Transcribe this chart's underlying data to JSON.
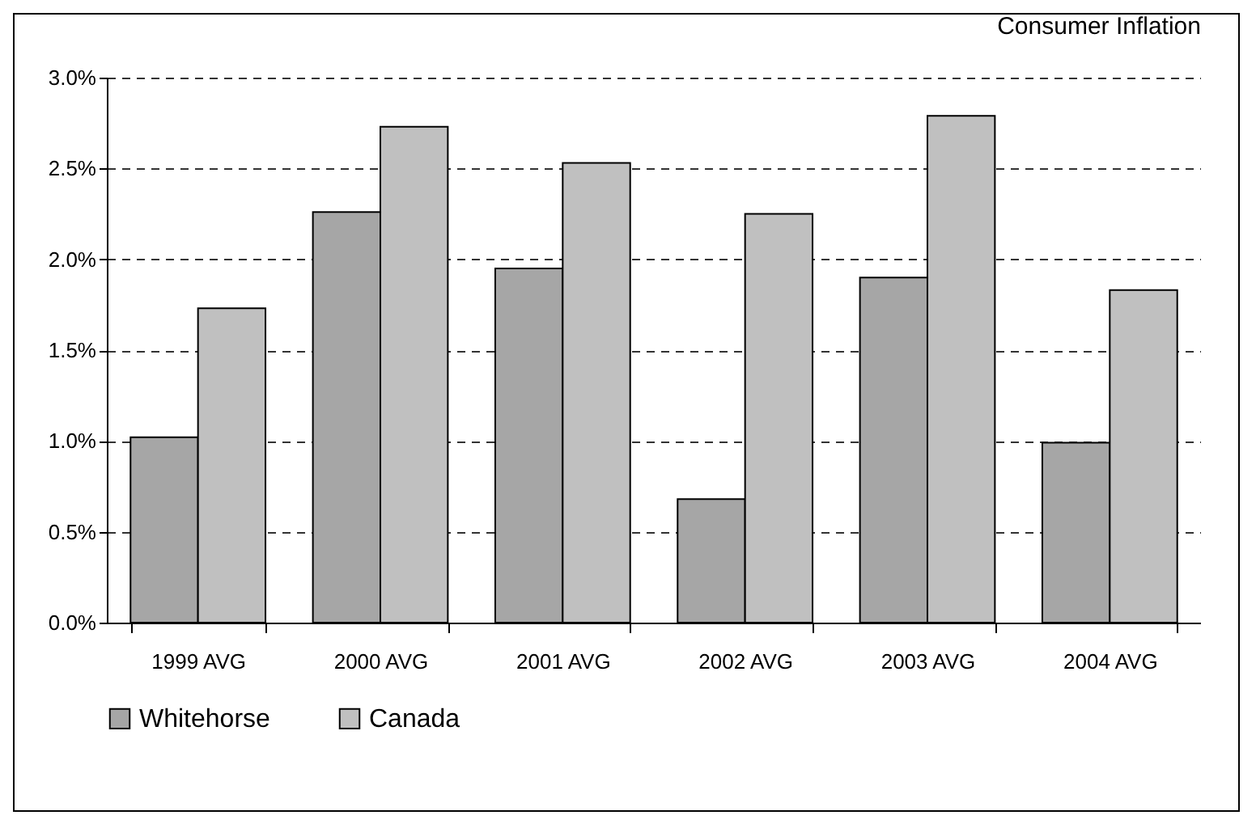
{
  "chart_data": {
    "type": "bar",
    "title": "Consumer Inflation",
    "categories": [
      "1999 AVG",
      "2000 AVG",
      "2001 AVG",
      "2002 AVG",
      "2003 AVG",
      "2004 AVG"
    ],
    "series": [
      {
        "name": "Whitehorse",
        "color": "#a6a6a6",
        "values": [
          1.02,
          2.26,
          1.95,
          0.68,
          1.9,
          0.99
        ]
      },
      {
        "name": "Canada",
        "color": "#c0c0c0",
        "values": [
          1.73,
          2.73,
          2.53,
          2.25,
          2.79,
          1.83
        ]
      }
    ],
    "ylim": [
      0,
      3
    ],
    "yticks": [
      {
        "value": 0,
        "label": "0.0%"
      },
      {
        "value": 0.5,
        "label": "0.5%"
      },
      {
        "value": 1,
        "label": "1.0%"
      },
      {
        "value": 1.5,
        "label": "1.5%"
      },
      {
        "value": 2,
        "label": "2.0%"
      },
      {
        "value": 2.5,
        "label": "2.5%"
      },
      {
        "value": 3,
        "label": "3.0%"
      }
    ],
    "grid": "y",
    "legend": "bottom"
  }
}
